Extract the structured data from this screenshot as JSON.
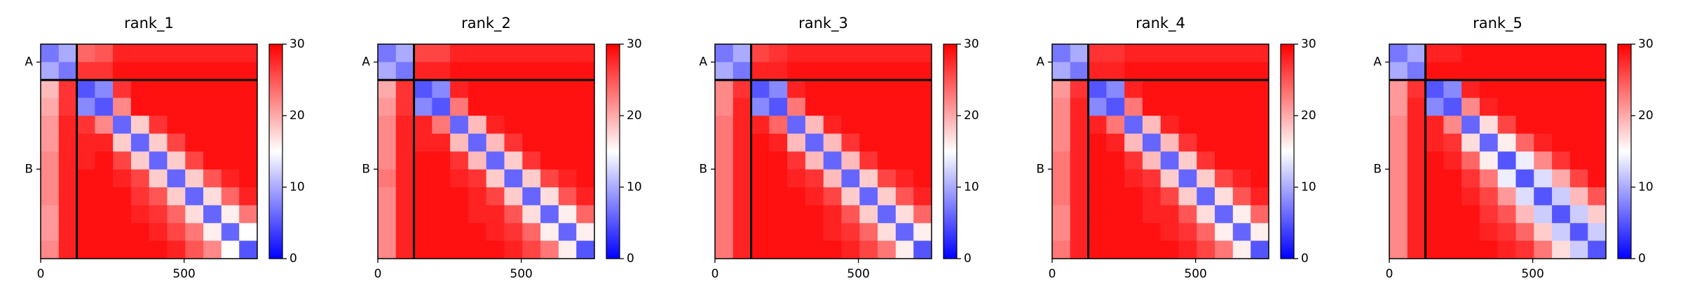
{
  "chart_data": [
    {
      "type": "heatmap",
      "title": "rank_1",
      "bins": [
        0,
        63,
        126,
        189,
        252,
        315,
        378,
        441,
        504,
        567,
        630,
        692,
        755
      ],
      "matrix": [
        [
          7,
          10,
          24,
          25,
          28,
          28,
          28,
          28,
          28,
          28,
          28,
          28
        ],
        [
          10,
          7,
          27,
          27,
          29,
          29,
          29,
          29,
          29,
          29,
          29,
          29
        ],
        [
          19,
          27,
          5,
          8,
          27,
          29,
          29,
          29,
          29,
          29,
          29,
          29
        ],
        [
          20,
          27,
          8,
          5,
          22,
          29,
          29,
          29,
          29,
          29,
          29,
          29
        ],
        [
          21,
          28,
          27,
          22,
          6,
          18,
          27,
          29,
          29,
          29,
          29,
          29
        ],
        [
          21,
          28,
          28,
          28,
          18,
          6,
          18,
          26,
          29,
          29,
          29,
          29
        ],
        [
          22,
          28,
          28,
          29,
          26,
          18,
          6,
          18,
          26,
          29,
          29,
          29
        ],
        [
          22,
          28,
          29,
          29,
          28,
          26,
          18,
          6,
          18,
          25,
          28,
          29
        ],
        [
          22,
          28,
          29,
          29,
          29,
          27,
          25,
          18,
          6,
          17,
          24,
          28
        ],
        [
          21,
          28,
          29,
          29,
          29,
          28,
          27,
          24,
          17,
          6,
          16,
          23
        ],
        [
          21,
          28,
          29,
          29,
          29,
          29,
          28,
          26,
          23,
          16,
          6,
          15
        ],
        [
          22,
          28,
          29,
          29,
          29,
          29,
          29,
          28,
          25,
          22,
          15,
          5
        ]
      ],
      "xlim": [
        0,
        755
      ],
      "ylim": [
        755,
        0
      ],
      "xticks": [
        0,
        500
      ],
      "yticks": [
        {
          "value": 63,
          "label": "A"
        },
        {
          "value": 440,
          "label": "B"
        }
      ],
      "boundaries": [
        126
      ],
      "clim": [
        0,
        30
      ],
      "cticks": [
        0,
        10,
        20,
        30
      ],
      "cmap": [
        "#0000ff",
        "#ffffff",
        "#ff0000"
      ]
    },
    {
      "type": "heatmap",
      "title": "rank_2",
      "bins": [
        0,
        63,
        126,
        189,
        252,
        315,
        378,
        441,
        504,
        567,
        630,
        692,
        755
      ],
      "matrix": [
        [
          7,
          10,
          26,
          26,
          28,
          28,
          28,
          28,
          28,
          28,
          28,
          28
        ],
        [
          10,
          7,
          28,
          28,
          29,
          29,
          29,
          29,
          29,
          29,
          29,
          29
        ],
        [
          20,
          27,
          5,
          8,
          28,
          29,
          29,
          29,
          29,
          29,
          29,
          29
        ],
        [
          21,
          27,
          8,
          5,
          23,
          29,
          29,
          29,
          29,
          29,
          29,
          29
        ],
        [
          22,
          28,
          28,
          23,
          6,
          19,
          28,
          29,
          29,
          29,
          29,
          29
        ],
        [
          22,
          28,
          28,
          28,
          19,
          6,
          19,
          27,
          29,
          29,
          29,
          29
        ],
        [
          22,
          28,
          29,
          29,
          27,
          19,
          6,
          18,
          27,
          29,
          29,
          29
        ],
        [
          23,
          28,
          29,
          29,
          28,
          27,
          18,
          6,
          18,
          26,
          28,
          29
        ],
        [
          22,
          28,
          29,
          29,
          29,
          28,
          26,
          18,
          6,
          17,
          25,
          28
        ],
        [
          22,
          28,
          29,
          29,
          29,
          28,
          28,
          25,
          17,
          6,
          16,
          24
        ],
        [
          22,
          28,
          29,
          29,
          29,
          29,
          28,
          27,
          24,
          16,
          6,
          16
        ],
        [
          22,
          28,
          29,
          29,
          29,
          29,
          29,
          28,
          26,
          23,
          16,
          5
        ]
      ],
      "xlim": [
        0,
        755
      ],
      "ylim": [
        755,
        0
      ],
      "xticks": [
        0,
        500
      ],
      "yticks": [
        {
          "value": 63,
          "label": "A"
        },
        {
          "value": 440,
          "label": "B"
        }
      ],
      "boundaries": [
        126
      ],
      "clim": [
        0,
        30
      ],
      "cticks": [
        0,
        10,
        20,
        30
      ],
      "cmap": [
        "#0000ff",
        "#ffffff",
        "#ff0000"
      ]
    },
    {
      "type": "heatmap",
      "title": "rank_3",
      "bins": [
        0,
        63,
        126,
        189,
        252,
        315,
        378,
        441,
        504,
        567,
        630,
        692,
        755
      ],
      "matrix": [
        [
          7,
          10,
          26,
          27,
          28,
          28,
          28,
          28,
          28,
          28,
          28,
          28
        ],
        [
          10,
          7,
          28,
          28,
          29,
          29,
          29,
          29,
          29,
          29,
          29,
          29
        ],
        [
          22,
          27,
          5,
          8,
          28,
          29,
          29,
          29,
          29,
          29,
          29,
          29
        ],
        [
          22,
          28,
          8,
          5,
          23,
          29,
          29,
          29,
          29,
          29,
          29,
          29
        ],
        [
          23,
          28,
          28,
          24,
          6,
          19,
          28,
          29,
          29,
          29,
          29,
          29
        ],
        [
          23,
          28,
          29,
          28,
          19,
          6,
          19,
          27,
          29,
          29,
          29,
          29
        ],
        [
          23,
          28,
          29,
          29,
          27,
          19,
          6,
          19,
          27,
          29,
          29,
          29
        ],
        [
          23,
          28,
          29,
          29,
          28,
          27,
          19,
          6,
          18,
          26,
          28,
          29
        ],
        [
          23,
          28,
          29,
          29,
          29,
          28,
          26,
          18,
          6,
          18,
          25,
          28
        ],
        [
          23,
          28,
          29,
          29,
          29,
          29,
          28,
          25,
          18,
          6,
          17,
          24
        ],
        [
          23,
          28,
          29,
          29,
          29,
          29,
          28,
          27,
          24,
          17,
          6,
          16
        ],
        [
          23,
          28,
          29,
          29,
          29,
          29,
          29,
          28,
          26,
          23,
          16,
          5
        ]
      ],
      "xlim": [
        0,
        755
      ],
      "ylim": [
        755,
        0
      ],
      "xticks": [
        0,
        500
      ],
      "yticks": [
        {
          "value": 63,
          "label": "A"
        },
        {
          "value": 440,
          "label": "B"
        }
      ],
      "boundaries": [
        126
      ],
      "clim": [
        0,
        30
      ],
      "cticks": [
        0,
        10,
        20,
        30
      ],
      "cmap": [
        "#0000ff",
        "#ffffff",
        "#ff0000"
      ]
    },
    {
      "type": "heatmap",
      "title": "rank_4",
      "bins": [
        0,
        63,
        126,
        189,
        252,
        315,
        378,
        441,
        504,
        567,
        630,
        692,
        755
      ],
      "matrix": [
        [
          7,
          10,
          27,
          27,
          28,
          28,
          28,
          28,
          28,
          28,
          28,
          28
        ],
        [
          10,
          7,
          28,
          28,
          29,
          29,
          29,
          29,
          29,
          29,
          29,
          29
        ],
        [
          21,
          27,
          5,
          8,
          28,
          29,
          29,
          29,
          29,
          29,
          29,
          29
        ],
        [
          22,
          28,
          8,
          5,
          23,
          29,
          29,
          29,
          29,
          29,
          29,
          29
        ],
        [
          22,
          28,
          28,
          23,
          6,
          19,
          28,
          29,
          29,
          29,
          29,
          29
        ],
        [
          22,
          28,
          29,
          28,
          19,
          6,
          19,
          27,
          29,
          29,
          29,
          29
        ],
        [
          23,
          28,
          29,
          29,
          27,
          19,
          6,
          18,
          27,
          29,
          29,
          29
        ],
        [
          23,
          28,
          29,
          29,
          28,
          27,
          18,
          6,
          18,
          26,
          28,
          29
        ],
        [
          23,
          28,
          29,
          29,
          29,
          28,
          26,
          18,
          6,
          17,
          25,
          28
        ],
        [
          22,
          28,
          29,
          29,
          29,
          28,
          28,
          25,
          17,
          6,
          16,
          24
        ],
        [
          22,
          28,
          29,
          29,
          29,
          29,
          28,
          27,
          24,
          16,
          6,
          16
        ],
        [
          23,
          28,
          29,
          29,
          29,
          29,
          29,
          28,
          26,
          23,
          16,
          5
        ]
      ],
      "xlim": [
        0,
        755
      ],
      "ylim": [
        755,
        0
      ],
      "xticks": [
        0,
        500
      ],
      "yticks": [
        {
          "value": 63,
          "label": "A"
        },
        {
          "value": 440,
          "label": "B"
        }
      ],
      "boundaries": [
        126
      ],
      "clim": [
        0,
        30
      ],
      "cticks": [
        0,
        10,
        20,
        30
      ],
      "cmap": [
        "#0000ff",
        "#ffffff",
        "#ff0000"
      ]
    },
    {
      "type": "heatmap",
      "title": "rank_5",
      "bins": [
        0,
        63,
        126,
        189,
        252,
        315,
        378,
        441,
        504,
        567,
        630,
        692,
        755
      ],
      "matrix": [
        [
          7,
          10,
          28,
          28,
          29,
          29,
          29,
          29,
          29,
          29,
          29,
          29
        ],
        [
          10,
          7,
          29,
          29,
          29,
          29,
          29,
          29,
          29,
          29,
          29,
          29
        ],
        [
          21,
          27,
          5,
          8,
          28,
          29,
          29,
          29,
          29,
          29,
          29,
          29
        ],
        [
          21,
          28,
          8,
          5,
          22,
          28,
          29,
          29,
          29,
          29,
          29,
          29
        ],
        [
          22,
          28,
          28,
          22,
          6,
          17,
          26,
          29,
          29,
          29,
          29,
          29
        ],
        [
          22,
          28,
          28,
          27,
          17,
          6,
          16,
          24,
          28,
          29,
          29,
          29
        ],
        [
          22,
          28,
          29,
          28,
          24,
          16,
          5,
          14,
          22,
          27,
          29,
          29
        ],
        [
          22,
          28,
          29,
          29,
          27,
          23,
          14,
          5,
          13,
          20,
          26,
          29
        ],
        [
          22,
          28,
          29,
          29,
          28,
          26,
          21,
          13,
          5,
          12,
          19,
          25
        ],
        [
          22,
          28,
          29,
          29,
          29,
          27,
          25,
          19,
          12,
          5,
          12,
          18
        ],
        [
          22,
          28,
          29,
          29,
          29,
          28,
          27,
          24,
          18,
          12,
          5,
          12
        ],
        [
          22,
          28,
          29,
          29,
          29,
          29,
          28,
          27,
          23,
          17,
          12,
          5
        ]
      ],
      "xlim": [
        0,
        755
      ],
      "ylim": [
        755,
        0
      ],
      "xticks": [
        0,
        500
      ],
      "yticks": [
        {
          "value": 63,
          "label": "A"
        },
        {
          "value": 440,
          "label": "B"
        }
      ],
      "boundaries": [
        126
      ],
      "clim": [
        0,
        30
      ],
      "cticks": [
        0,
        10,
        20,
        30
      ],
      "cmap": [
        "#0000ff",
        "#ffffff",
        "#ff0000"
      ]
    }
  ]
}
